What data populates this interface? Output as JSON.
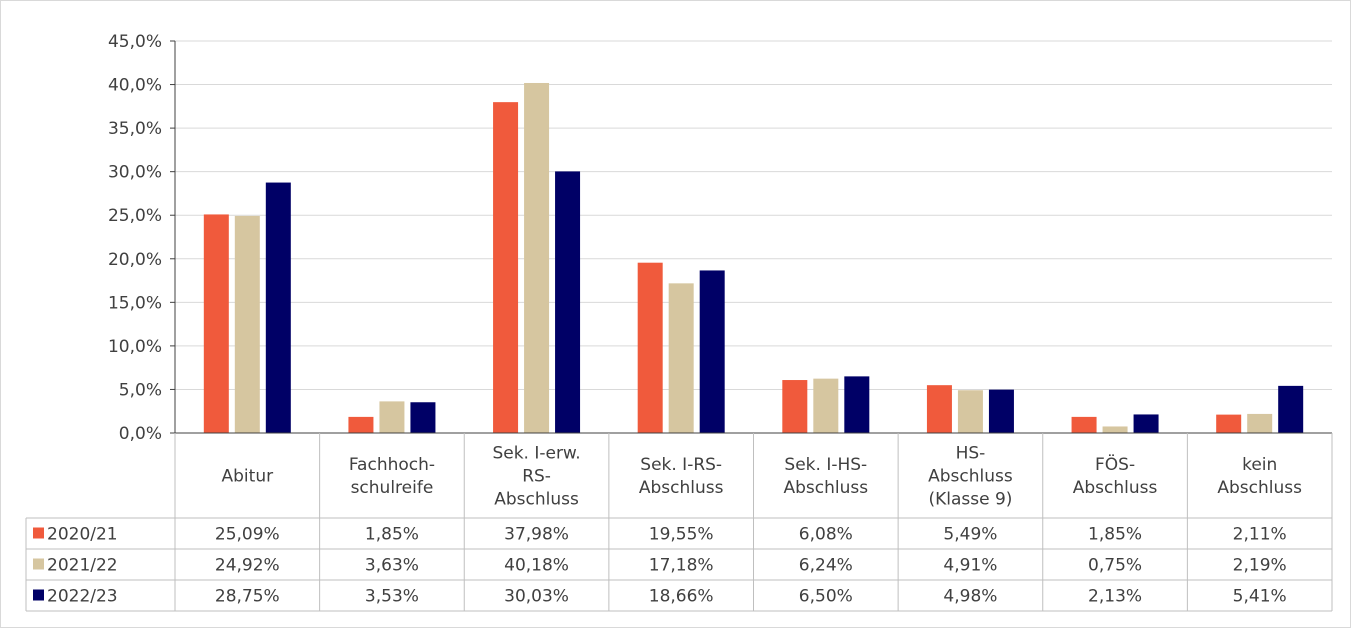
{
  "chart_data": {
    "type": "bar",
    "categories": [
      [
        "Abitur"
      ],
      [
        "Fachhoch-",
        "schulreife"
      ],
      [
        "Sek. I-erw.",
        "RS-",
        "Abschluss"
      ],
      [
        "Sek. I-RS-",
        "Abschluss"
      ],
      [
        "Sek. I-HS-",
        "Abschluss"
      ],
      [
        "HS-",
        "Abschluss",
        "(Klasse 9)"
      ],
      [
        "FÖS-",
        "Abschluss"
      ],
      [
        "kein",
        "Abschluss"
      ]
    ],
    "ylim": [
      0,
      45
    ],
    "ytick_step": 5,
    "ytick_labels": [
      "0,0%",
      "5,0%",
      "10,0%",
      "15,0%",
      "20,0%",
      "25,0%",
      "30,0%",
      "35,0%",
      "40,0%",
      "45,0%"
    ],
    "grid": true,
    "legend_placement": "data-table-left",
    "series": [
      {
        "name": "2020/21",
        "color": "#f05a3c",
        "values": [
          25.09,
          1.85,
          37.98,
          19.55,
          6.08,
          5.49,
          1.85,
          2.11
        ],
        "labels": [
          "25,09%",
          "1,85%",
          "37,98%",
          "19,55%",
          "6,08%",
          "5,49%",
          "1,85%",
          "2,11%"
        ]
      },
      {
        "name": "2021/22",
        "color": "#d6c6a0",
        "values": [
          24.92,
          3.63,
          40.18,
          17.18,
          6.24,
          4.91,
          0.75,
          2.19
        ],
        "labels": [
          "24,92%",
          "3,63%",
          "40,18%",
          "17,18%",
          "6,24%",
          "4,91%",
          "0,75%",
          "2,19%"
        ]
      },
      {
        "name": "2022/23",
        "color": "#000066",
        "values": [
          28.75,
          3.53,
          30.03,
          18.66,
          6.5,
          4.98,
          2.13,
          5.41
        ],
        "labels": [
          "28,75%",
          "3,53%",
          "30,03%",
          "18,66%",
          "6,50%",
          "4,98%",
          "2,13%",
          "5,41%"
        ]
      }
    ]
  }
}
